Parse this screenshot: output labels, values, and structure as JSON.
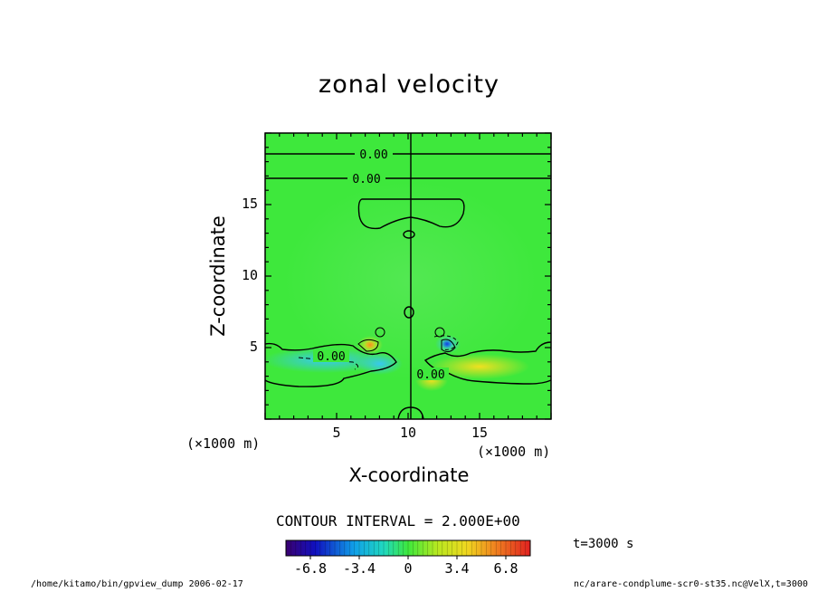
{
  "chart_data": {
    "type": "heatmap",
    "title": "zonal velocity",
    "xlabel": "X-coordinate",
    "ylabel": "Z-coordinate",
    "xunit_left": "(×1000 m)",
    "xunit_right": "(×1000 m)",
    "xlim": [
      0,
      20
    ],
    "ylim": [
      0,
      20
    ],
    "xticks": [
      5,
      10,
      15
    ],
    "yticks": [
      5,
      10,
      15
    ],
    "contour_interval_text": "CONTOUR INTERVAL = 2.000E+00",
    "contour_labels": [
      "0.00",
      "0.00",
      "0.00",
      "0.00"
    ],
    "colorbar": {
      "ticks": [
        "-6.8",
        "-3.4",
        "0",
        "3.4",
        "6.8"
      ],
      "tick_values": [
        -6.8,
        -3.4,
        0,
        3.4,
        6.8
      ],
      "range": [
        -8.5,
        8.5
      ]
    },
    "features": [
      {
        "name": "left low-level negative band",
        "x": 3,
        "z": 3.8,
        "value": -2
      },
      {
        "name": "right low-level positive band",
        "x": 15.5,
        "z": 3.7,
        "value": 3
      },
      {
        "name": "left positive core",
        "x": 7.3,
        "z": 5.1,
        "value": 4
      },
      {
        "name": "right negative core",
        "x": 12.7,
        "z": 5.0,
        "value": -4
      },
      {
        "name": "near-center positive patch",
        "x": 12,
        "z": 2.5,
        "value": 2
      }
    ]
  },
  "time_label": "t=3000 s",
  "footer": {
    "left": "/home/kitamo/bin/gpview_dump  2006-02-17",
    "right": "nc/arare-condplume-scr0-st35.nc@VelX,t=3000"
  },
  "colors": {
    "background_field": "#3ee83c",
    "negative": "#30d0f0",
    "positive": "#f0e020"
  }
}
